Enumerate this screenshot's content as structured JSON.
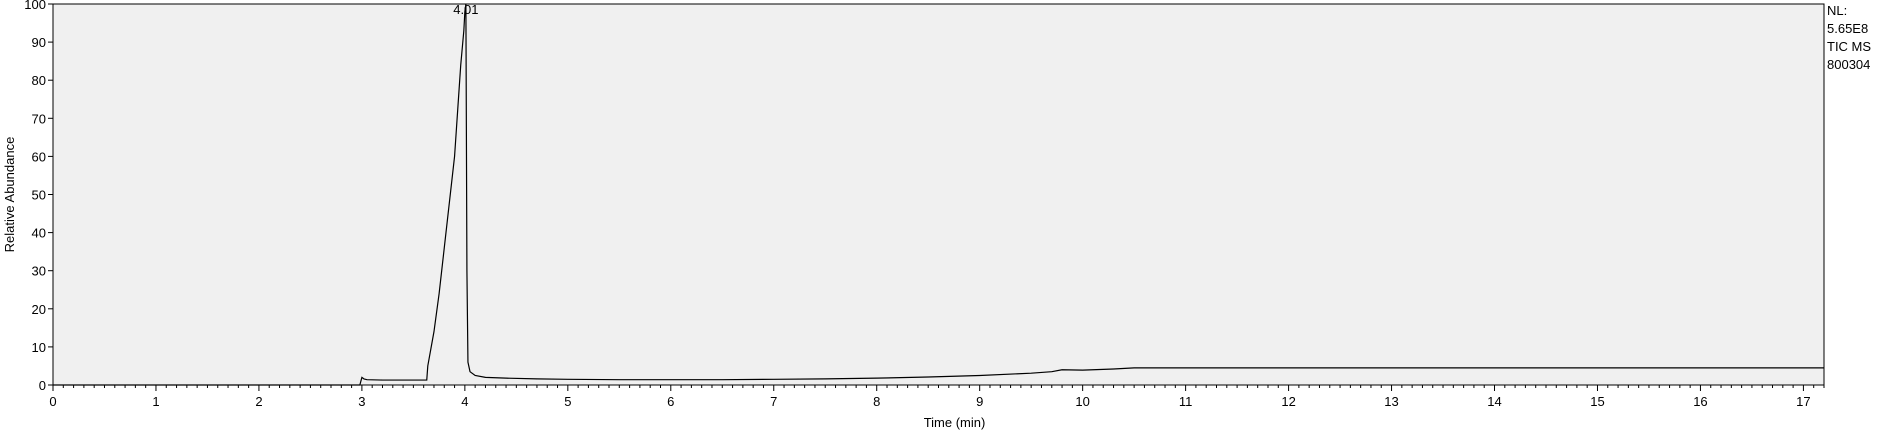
{
  "chart_data": {
    "type": "line",
    "xlabel": "Time (min)",
    "ylabel": "Relative Abundance",
    "xlim": [
      0,
      17.2
    ],
    "ylim": [
      0,
      100
    ],
    "x_ticks": [
      0,
      1,
      2,
      3,
      4,
      5,
      6,
      7,
      8,
      9,
      10,
      11,
      12,
      13,
      14,
      15,
      16,
      17
    ],
    "y_ticks": [
      0,
      10,
      20,
      30,
      40,
      50,
      60,
      70,
      80,
      90,
      100
    ],
    "grid": false,
    "background": "#f0f0f0",
    "line_color": "#000000",
    "peak_annotation": {
      "x": 4.01,
      "y": 100,
      "label": "4.01"
    },
    "info_lines": [
      "NL:",
      "5.65E8",
      "TIC  MS",
      "800304"
    ],
    "series": [
      {
        "x": [
          0,
          2.98,
          3.0,
          3.02,
          3.05,
          3.2,
          3.4,
          3.63,
          3.64,
          3.7,
          3.75,
          3.8,
          3.85,
          3.9,
          3.93,
          3.96,
          3.99,
          4.0,
          4.01,
          4.02,
          4.03,
          4.05,
          4.1,
          4.2,
          4.4,
          4.7,
          5.0,
          5.5,
          6.0,
          6.5,
          7.0,
          7.5,
          8.0,
          8.5,
          9.0,
          9.5,
          9.7,
          9.8,
          10.0,
          10.3,
          10.5,
          11.0,
          12.0,
          13.0,
          14.0,
          15.0,
          16.0,
          17.2
        ],
        "y": [
          0,
          0,
          2,
          1.6,
          1.4,
          1.3,
          1.3,
          1.3,
          5,
          14,
          24,
          36,
          48,
          60,
          72,
          84,
          93,
          98,
          100,
          30,
          6,
          3.5,
          2.5,
          2.0,
          1.8,
          1.6,
          1.5,
          1.4,
          1.4,
          1.4,
          1.5,
          1.6,
          1.8,
          2.1,
          2.5,
          3.1,
          3.5,
          4.0,
          3.9,
          4.2,
          4.5,
          4.5,
          4.5,
          4.5,
          4.5,
          4.5,
          4.5,
          4.5
        ]
      }
    ]
  }
}
